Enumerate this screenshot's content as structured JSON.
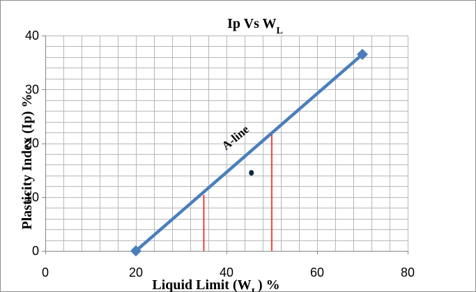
{
  "chart_data": {
    "type": "scatter",
    "title": {
      "main": "Ip Vs W",
      "sub": "L"
    },
    "xlabel": {
      "pre": "Liquid Limit (W",
      "sub": "L",
      "post": ") %"
    },
    "ylabel": "Plasticity Index (Ip) %",
    "xlim": [
      0,
      80
    ],
    "ylim": [
      0,
      40
    ],
    "x_ticks": [
      0,
      20,
      40,
      60,
      80
    ],
    "y_ticks": [
      0,
      10,
      20,
      30,
      40
    ],
    "x_minor_step": 4,
    "y_minor_step": 2,
    "grid": true,
    "series": [
      {
        "role": "a-line",
        "color": "#4a7ebb",
        "x": [
          20,
          70
        ],
        "y": [
          0,
          36.5
        ]
      },
      {
        "role": "sample-point",
        "color": "#0b2a4a",
        "x": [
          45.5
        ],
        "y": [
          14.5
        ]
      }
    ],
    "reference_lines": [
      {
        "color": "#ff0000",
        "x": 35,
        "y": [
          0,
          10.4
        ]
      },
      {
        "color": "#ff0000",
        "x": 50,
        "y": [
          0,
          21.9
        ]
      }
    ],
    "annotations": [
      {
        "text": "A-line",
        "x": 42.5,
        "y": 20.5
      }
    ]
  }
}
